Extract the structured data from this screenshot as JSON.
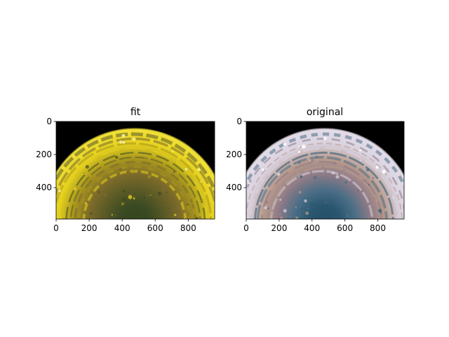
{
  "chart_data": [
    {
      "type": "image",
      "title": "fit",
      "xlabel": "",
      "ylabel": "",
      "xlim": [
        0,
        960
      ],
      "ylim": [
        590,
        0
      ],
      "xticks": [
        0,
        200,
        400,
        600,
        800
      ],
      "yticks": [
        0,
        200,
        400
      ],
      "image": {
        "background": "#000000",
        "disk_center": [
          475,
          600
        ],
        "disk_radius": 560,
        "palette": [
          "#e6d21e",
          "#a8961e",
          "#7c6a2a",
          "#5a5a26",
          "#3a4a22"
        ],
        "north_color": "#f2e23a",
        "south_color": "#34461e",
        "spot_color": "#f5ee9a"
      }
    },
    {
      "type": "image",
      "title": "original",
      "xlabel": "",
      "ylabel": "",
      "xlim": [
        0,
        960
      ],
      "ylim": [
        590,
        0
      ],
      "xticks": [
        0,
        200,
        400,
        600,
        800
      ],
      "yticks": [
        0,
        200,
        400
      ],
      "image": {
        "background": "#000000",
        "disk_center": [
          475,
          600
        ],
        "disk_radius": 560,
        "palette": [
          "#d9d2e0",
          "#b89a8c",
          "#8c7a86",
          "#4a6e86",
          "#2a5670"
        ],
        "north_color": "#e4dde8",
        "south_color": "#235066",
        "spot_color": "#ffffff"
      }
    }
  ]
}
